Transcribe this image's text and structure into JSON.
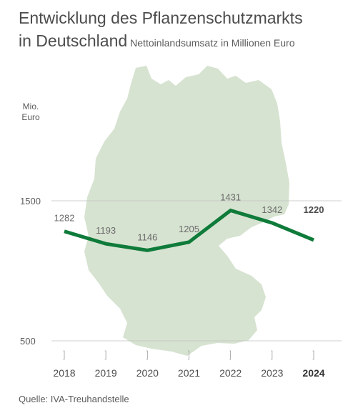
{
  "header": {
    "title_line1": "Entwicklung des Pflanzenschutzmarkts",
    "title_line2": "in Deutschland",
    "subtitle": "Nettoinlandsumsatz in Millionen Euro"
  },
  "footer": {
    "source": "Quelle: IVA-Treuhandstelle"
  },
  "colors": {
    "line": "#0f7b3a",
    "map": "#d7e3d1",
    "gridline": "#bfbfbf"
  },
  "chart_data": {
    "type": "line",
    "title": "Entwicklung des Pflanzenschutzmarkts in Deutschland",
    "subtitle": "Nettoinlandsumsatz in Millionen Euro",
    "ylabel": "Mio. Euro",
    "ylabel_lines": [
      "Mio.",
      "Euro"
    ],
    "ylim": [
      500,
      1500
    ],
    "yticks": [
      500,
      1500
    ],
    "grid": true,
    "categories": [
      "2018",
      "2019",
      "2020",
      "2021",
      "2022",
      "2023",
      "2024"
    ],
    "series": [
      {
        "values": [
          1282,
          1193,
          1146,
          1205,
          1431,
          1342,
          1220
        ]
      }
    ],
    "highlight_index": 6
  }
}
